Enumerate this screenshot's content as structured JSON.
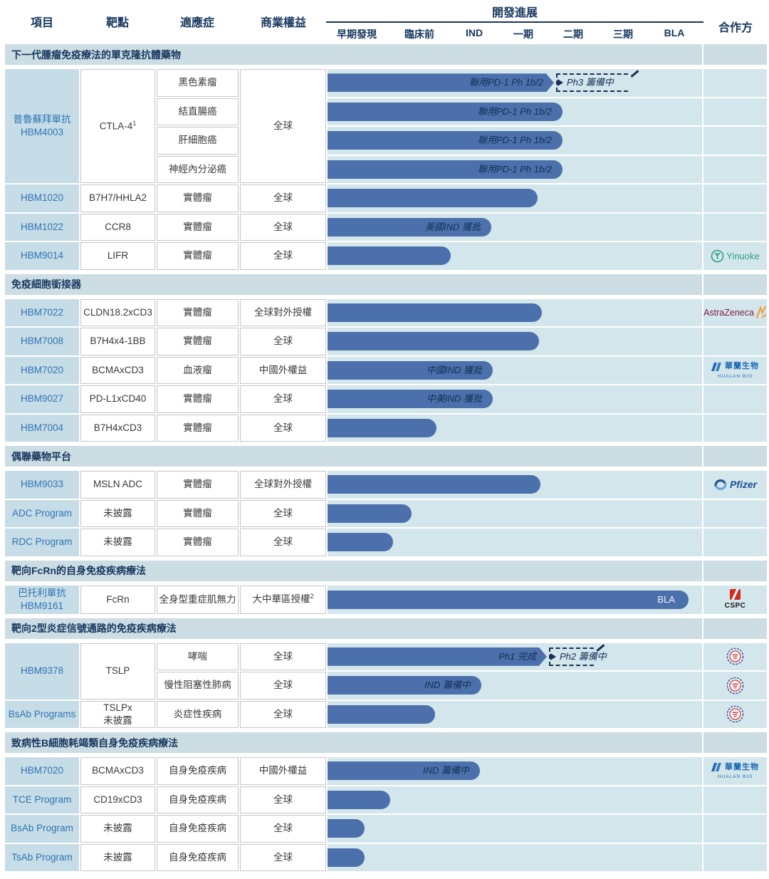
{
  "header": {
    "columns": [
      "項目",
      "靶點",
      "適應症",
      "商業權益"
    ],
    "progress_title": "開發進展",
    "phases": [
      "早期發現",
      "臨床前",
      "IND",
      "一期",
      "二期",
      "三期",
      "BLA"
    ],
    "partner_column": "合作方"
  },
  "colors": {
    "bar": "#4b70ab",
    "navy_text": "#17375e",
    "project_text": "#2e74b5",
    "section_band_bg": "#ccdde4",
    "track_bg": "#d3e6ec",
    "project_cell_bg": "#c6dce6"
  },
  "sections": [
    {
      "title": "下一代腫瘤免疫療法的單克隆抗體藥物",
      "groups": [
        {
          "project_lines": [
            "普魯蘇拜單抗",
            "HBM4003"
          ],
          "target": "CTLA-4",
          "target_sup": "1",
          "rights": "全球",
          "rows": [
            {
              "indication": "黑色素瘤",
              "bar": {
                "end": 778,
                "shape": "arrow",
                "label": "聯用PD-1 Ph 1b/2",
                "dashed": {
                  "end": 886,
                  "label": "Ph3 籌備中"
                }
              }
            },
            {
              "indication": "結直腸癌",
              "bar": {
                "end": 790,
                "shape": "round",
                "label": "聯用PD-1 Ph 1b/2"
              }
            },
            {
              "indication": "肝細胞癌",
              "bar": {
                "end": 790,
                "shape": "round",
                "label": "聯用PD-1 Ph 1b/2"
              }
            },
            {
              "indication": "神經內分泌癌",
              "bar": {
                "end": 790,
                "shape": "round",
                "label": "聯用PD-1 Ph 1b/2"
              }
            }
          ]
        },
        {
          "project_lines": [
            "HBM1020"
          ],
          "target": "B7H7/HHLA2",
          "rights": "全球",
          "rows": [
            {
              "indication": "實體瘤",
              "bar": {
                "end": 755,
                "shape": "round"
              }
            }
          ]
        },
        {
          "project_lines": [
            "HBM1022"
          ],
          "target": "CCR8",
          "rights": "全球",
          "rows": [
            {
              "indication": "實體瘤",
              "bar": {
                "end": 690,
                "shape": "round",
                "label": "美國IND 獲批"
              }
            }
          ]
        },
        {
          "project_lines": [
            "HBM9014"
          ],
          "target": "LIFR",
          "rights": "全球",
          "rows": [
            {
              "indication": "實體瘤",
              "bar": {
                "end": 633,
                "shape": "round"
              },
              "partner": {
                "id": "yinuoke",
                "label": "Yinuoke"
              }
            }
          ]
        }
      ]
    },
    {
      "title": "免疫細胞銜接器",
      "groups": [
        {
          "project_lines": [
            "HBM7022"
          ],
          "target": "CLDN18.2xCD3",
          "rights": "全球對外授權",
          "rows": [
            {
              "indication": "實體瘤",
              "bar": {
                "end": 761,
                "shape": "round"
              },
              "partner": {
                "id": "astrazeneca",
                "label": "AstraZeneca"
              }
            }
          ]
        },
        {
          "project_lines": [
            "HBM7008"
          ],
          "target": "B7H4x4-1BB",
          "rights": "全球",
          "rows": [
            {
              "indication": "實體瘤",
              "bar": {
                "end": 757,
                "shape": "round"
              }
            }
          ]
        },
        {
          "project_lines": [
            "HBM7020"
          ],
          "target": "BCMAxCD3",
          "rights": "中國外權益",
          "rows": [
            {
              "indication": "血液瘤",
              "bar": {
                "end": 692,
                "shape": "round",
                "label": "中國IND 獲批"
              },
              "partner": {
                "id": "hualan",
                "label_cn": "華蘭生物",
                "label_en": "HUALAN BIO"
              }
            }
          ]
        },
        {
          "project_lines": [
            "HBM9027"
          ],
          "target": "PD-L1xCD40",
          "rights": "全球",
          "rows": [
            {
              "indication": "實體瘤",
              "bar": {
                "end": 692,
                "shape": "round",
                "label": "中美IND 獲批"
              }
            }
          ]
        },
        {
          "project_lines": [
            "HBM7004"
          ],
          "target": "B7H4xCD3",
          "rights": "全球",
          "rows": [
            {
              "indication": "實體瘤",
              "bar": {
                "end": 613,
                "shape": "round"
              }
            }
          ]
        }
      ]
    },
    {
      "title": "偶聯藥物平台",
      "groups": [
        {
          "project_lines": [
            "HBM9033"
          ],
          "target": "MSLN ADC",
          "rights": "全球對外授權",
          "rows": [
            {
              "indication": "實體瘤",
              "bar": {
                "end": 759,
                "shape": "round"
              },
              "partner": {
                "id": "pfizer",
                "label": "Pfizer"
              }
            }
          ]
        },
        {
          "project_lines": [
            "ADC Program"
          ],
          "target": "未披露",
          "rights": "全球",
          "rows": [
            {
              "indication": "實體瘤",
              "bar": {
                "end": 578,
                "shape": "round"
              }
            }
          ]
        },
        {
          "project_lines": [
            "RDC Program"
          ],
          "target": "未披露",
          "rights": "全球",
          "rows": [
            {
              "indication": "實體瘤",
              "bar": {
                "end": 552,
                "shape": "round"
              }
            }
          ]
        }
      ]
    },
    {
      "title": "靶向FcRn的自身免疫疾病療法",
      "tall": true,
      "groups": [
        {
          "project_lines": [
            "巴托利單抗",
            "HBM9161"
          ],
          "target": "FcRn",
          "rights": "大中華區授權",
          "rights_sup": "2",
          "rows": [
            {
              "indication": "全身型重症肌無力",
              "bar": {
                "end": 967,
                "shape": "round",
                "label": "BLA",
                "label_light": true
              },
              "partner": {
                "id": "cspc",
                "label": "CSPC"
              }
            }
          ]
        }
      ]
    },
    {
      "title": "靶向2型炎症信號通路的免疫疾病療法",
      "groups": [
        {
          "project_lines": [
            "HBM9378"
          ],
          "target": "TSLP",
          "rows": [
            {
              "indication": "哮喘",
              "rights": "全球",
              "bar": {
                "end": 768,
                "shape": "arrow",
                "label": "Ph1 完成",
                "dashed": {
                  "end": 838,
                  "label": "Ph2 籌備中"
                }
              },
              "partner": {
                "id": "seal"
              }
            },
            {
              "indication": "慢性阻塞性肺病",
              "rights": "全球",
              "bar": {
                "end": 676,
                "shape": "round",
                "label": "IND 籌備中"
              },
              "partner": {
                "id": "seal"
              }
            }
          ]
        },
        {
          "project_lines": [
            "BsAb Programs"
          ],
          "target_lines": [
            "TSLPx",
            "未披露"
          ],
          "rights": "全球",
          "rows": [
            {
              "indication": "炎症性疾病",
              "bar": {
                "end": 611,
                "shape": "round"
              },
              "partner": {
                "id": "seal"
              }
            }
          ]
        }
      ]
    },
    {
      "title": "致病性B細胞耗竭類自身免疫疾病療法",
      "groups": [
        {
          "project_lines": [
            "HBM7020"
          ],
          "target": "BCMAxCD3",
          "rights": "中國外權益",
          "rows": [
            {
              "indication": "自身免疫疾病",
              "bar": {
                "end": 674,
                "shape": "round",
                "label": "IND 籌備中"
              },
              "partner": {
                "id": "hualan",
                "label_cn": "華蘭生物",
                "label_en": "HUALAN BIO"
              }
            }
          ]
        },
        {
          "project_lines": [
            "TCE Program"
          ],
          "target": "CD19xCD3",
          "rights": "全球",
          "rows": [
            {
              "indication": "自身免疫疾病",
              "bar": {
                "end": 548,
                "shape": "round"
              }
            }
          ]
        },
        {
          "project_lines": [
            "BsAb Program"
          ],
          "target": "未披露",
          "rights": "全球",
          "rows": [
            {
              "indication": "自身免疫疾病",
              "bar": {
                "end": 512,
                "shape": "round"
              }
            }
          ]
        },
        {
          "project_lines": [
            "TsAb Program"
          ],
          "target": "未披露",
          "rights": "全球",
          "rows": [
            {
              "indication": "自身免疫疾病",
              "bar": {
                "end": 512,
                "shape": "round"
              }
            }
          ]
        }
      ]
    }
  ],
  "chart_data": {
    "type": "gantt",
    "title": "開發進展",
    "phase_axis": [
      "早期發現",
      "臨床前",
      "IND",
      "一期",
      "二期",
      "三期",
      "BLA"
    ],
    "entries": [
      {
        "project": "普魯蘇拜單抗 HBM4003",
        "indication": "黑色素瘤",
        "stage": "二期 (聯用PD-1 Ph 1b/2)",
        "planned": "Ph3 籌備中"
      },
      {
        "project": "普魯蘇拜單抗 HBM4003",
        "indication": "結直腸癌",
        "stage": "二期 (聯用PD-1 Ph 1b/2)"
      },
      {
        "project": "普魯蘇拜單抗 HBM4003",
        "indication": "肝細胞癌",
        "stage": "二期 (聯用PD-1 Ph 1b/2)"
      },
      {
        "project": "普魯蘇拜單抗 HBM4003",
        "indication": "神經內分泌癌",
        "stage": "二期 (聯用PD-1 Ph 1b/2)"
      },
      {
        "project": "HBM1020",
        "indication": "實體瘤",
        "stage": "一期"
      },
      {
        "project": "HBM1022",
        "indication": "實體瘤",
        "stage": "美國IND 獲批"
      },
      {
        "project": "HBM9014",
        "indication": "實體瘤",
        "stage": "臨床前",
        "partner": "Yinuoke"
      },
      {
        "project": "HBM7022",
        "indication": "實體瘤",
        "stage": "一期",
        "partner": "AstraZeneca"
      },
      {
        "project": "HBM7008",
        "indication": "實體瘤",
        "stage": "一期"
      },
      {
        "project": "HBM7020",
        "indication": "血液瘤",
        "stage": "中國IND 獲批",
        "partner": "華蘭生物 HUALAN BIO"
      },
      {
        "project": "HBM9027",
        "indication": "實體瘤",
        "stage": "中美IND 獲批"
      },
      {
        "project": "HBM7004",
        "indication": "實體瘤",
        "stage": "臨床前"
      },
      {
        "project": "HBM9033",
        "indication": "實體瘤",
        "stage": "一期",
        "partner": "Pfizer"
      },
      {
        "project": "ADC Program",
        "indication": "實體瘤",
        "stage": "臨床前"
      },
      {
        "project": "RDC Program",
        "indication": "實體瘤",
        "stage": "早期發現/臨床前"
      },
      {
        "project": "巴托利單抗 HBM9161",
        "indication": "全身型重症肌無力",
        "stage": "BLA",
        "partner": "CSPC"
      },
      {
        "project": "HBM9378",
        "indication": "哮喘",
        "stage": "Ph1 完成",
        "planned": "Ph2 籌備中"
      },
      {
        "project": "HBM9378",
        "indication": "慢性阻塞性肺病",
        "stage": "IND 籌備中"
      },
      {
        "project": "BsAb Programs",
        "indication": "炎症性疾病",
        "stage": "臨床前"
      },
      {
        "project": "HBM7020",
        "indication": "自身免疫疾病",
        "stage": "IND 籌備中",
        "partner": "華蘭生物 HUALAN BIO"
      },
      {
        "project": "TCE Program",
        "indication": "自身免疫疾病",
        "stage": "早期發現/臨床前"
      },
      {
        "project": "BsAb Program",
        "indication": "自身免疫疾病",
        "stage": "早期發現"
      },
      {
        "project": "TsAb Program",
        "indication": "自身免疫疾病",
        "stage": "早期發現"
      }
    ]
  }
}
